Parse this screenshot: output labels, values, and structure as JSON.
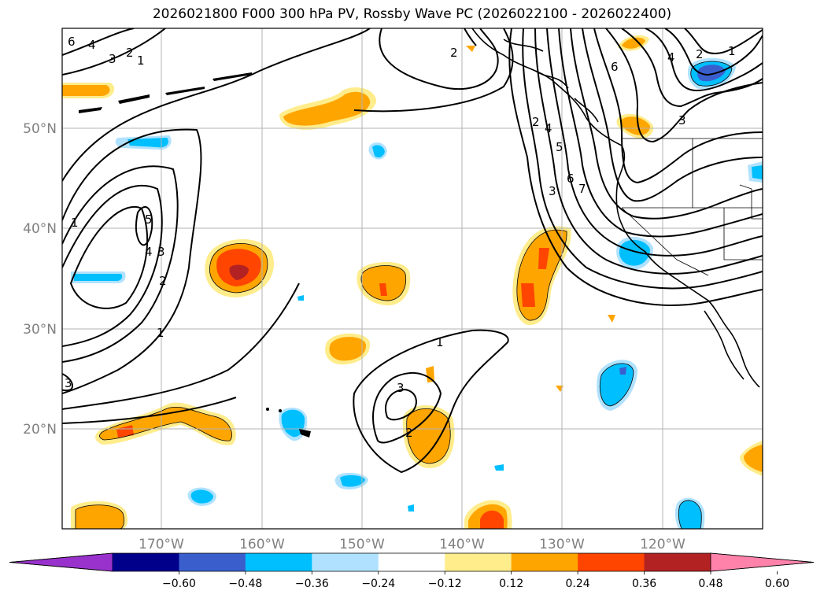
{
  "title": "2026021800 F000 300 hPa PV, Rossby Wave PC (2026022100 - 2026022400)",
  "map": {
    "lon_ticks": [
      "170°W",
      "160°W",
      "150°W",
      "140°W",
      "130°W",
      "120°W"
    ],
    "lat_ticks": [
      "50°N",
      "40°N",
      "30°N",
      "20°N"
    ]
  },
  "colorbar": {
    "colors": [
      "#9932CC",
      "#00008B",
      "#3A5FCD",
      "#00BFFF",
      "#B0E2FF",
      "#FFFFFF",
      "#FFEC8B",
      "#FFA500",
      "#FF4500",
      "#B22222",
      "#FF82AB"
    ],
    "labels": [
      "−0.60",
      "−0.48",
      "−0.36",
      "−0.24",
      "−0.12",
      "0.12",
      "0.24",
      "0.36",
      "0.48",
      "0.60"
    ]
  },
  "contour_labels": [
    "6",
    "4",
    "3",
    "2",
    "1",
    "2",
    "2",
    "7",
    "6",
    "5",
    "4",
    "3",
    "4",
    "3",
    "2",
    "1",
    "6",
    "1",
    "5",
    "4",
    "3",
    "2",
    "1",
    "1",
    "3",
    "2",
    "3"
  ]
}
